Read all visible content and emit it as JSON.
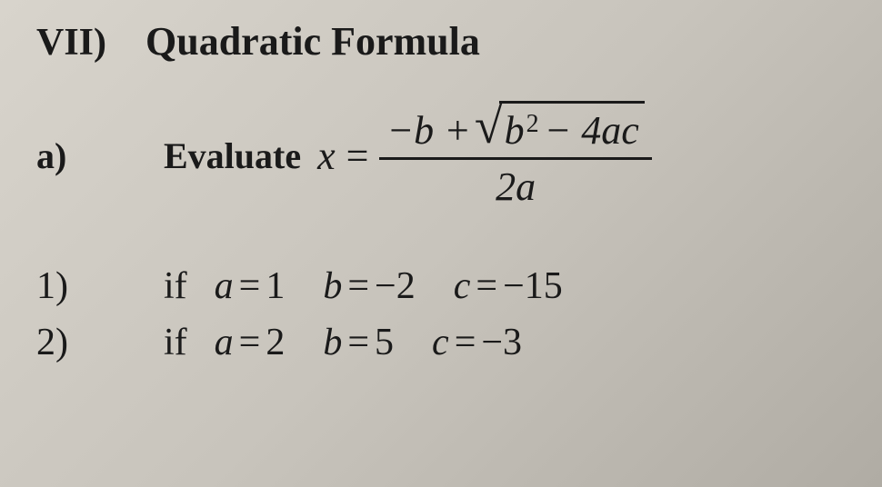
{
  "section": {
    "number": "VII)",
    "title": "Quadratic Formula"
  },
  "sub": {
    "label": "a)",
    "lead": "Evaluate"
  },
  "formula": {
    "lhs_var": "x",
    "eq": "=",
    "num_leading": "−b +",
    "sqrt_symbol": "√",
    "rad_b": "b",
    "rad_exp": "2",
    "rad_rest": "− 4ac",
    "denom": "2a"
  },
  "items": [
    {
      "num": "1)",
      "if": "if",
      "a_var": "a",
      "a_val": "1",
      "b_var": "b",
      "b_val": "−2",
      "c_var": "c",
      "c_val": "−15"
    },
    {
      "num": "2)",
      "if": "if",
      "a_var": "a",
      "a_val": "2",
      "b_var": "b",
      "b_val": "5",
      "c_var": "c",
      "c_val": "−3"
    }
  ],
  "eq_sign": "="
}
